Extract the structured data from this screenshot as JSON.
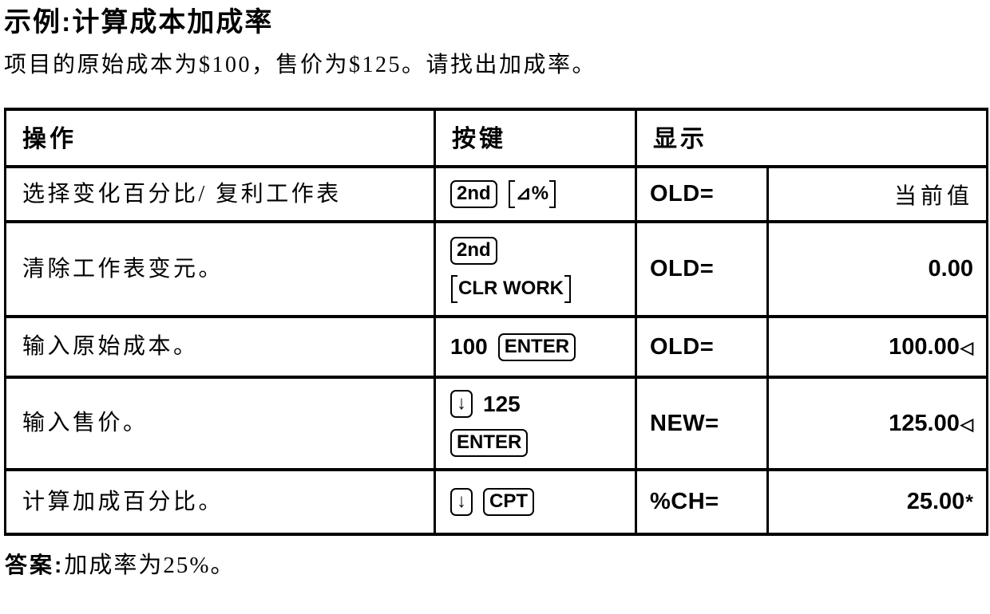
{
  "page": {
    "title": "示例:计算成本加成率",
    "subtitle": "项目的原始成本为$100，售价为$125。请找出加成率。",
    "answer_prefix": "答案:",
    "answer_text": "加成率为25%。"
  },
  "table": {
    "headers": {
      "operation": "操作",
      "keys": "按键",
      "display": "显示"
    },
    "rows": [
      {
        "operation": "选择变化百分比/ 复利工作表",
        "keys": [
          [
            {
              "style": "boxed",
              "label": "2nd"
            },
            {
              "style": "bracket",
              "label": "⊿%"
            }
          ]
        ],
        "display_label": "OLD=",
        "value": "当前值",
        "suffix": ""
      },
      {
        "operation": "清除工作表变元。",
        "keys": [
          [
            {
              "style": "boxed",
              "label": "2nd"
            }
          ],
          [
            {
              "style": "bracket",
              "label": "CLR WORK"
            }
          ]
        ],
        "display_label": "OLD=",
        "value": "0.00",
        "suffix": ""
      },
      {
        "operation": "输入原始成本。",
        "keys": [
          [
            {
              "style": "plain",
              "label": "100"
            },
            {
              "style": "boxed",
              "label": "ENTER"
            }
          ]
        ],
        "display_label": "OLD=",
        "value": "100.00",
        "suffix": "◁"
      },
      {
        "operation": "输入售价。",
        "keys": [
          [
            {
              "style": "boxed",
              "label": "↓"
            },
            {
              "style": "plain",
              "label": "125"
            }
          ],
          [
            {
              "style": "boxed",
              "label": "ENTER"
            }
          ]
        ],
        "display_label": "NEW=",
        "value": "125.00",
        "suffix": "◁"
      },
      {
        "operation": "计算加成百分比。",
        "keys": [
          [
            {
              "style": "boxed",
              "label": "↓"
            },
            {
              "style": "boxed",
              "label": "CPT"
            }
          ]
        ],
        "display_label": "%CH=",
        "value": "25.00",
        "suffix": "*"
      }
    ]
  }
}
